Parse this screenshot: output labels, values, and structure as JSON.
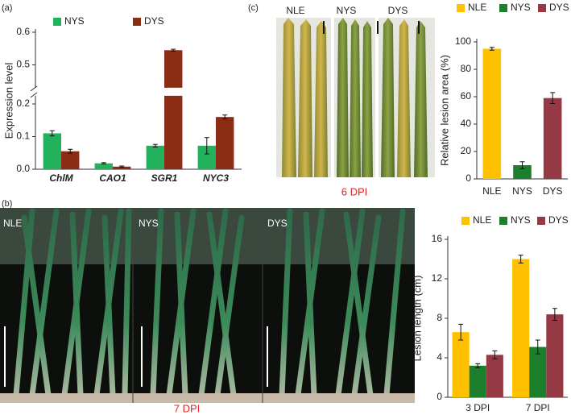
{
  "panel_labels": [
    "(a)",
    "(b)",
    "(c)"
  ],
  "photo_c": {
    "labels": [
      "NLE",
      "NYS",
      "DYS"
    ],
    "caption": "6 DPI"
  },
  "photo_b": {
    "labels": [
      "NLE",
      "NYS",
      "DYS"
    ],
    "caption": "7 DPI"
  },
  "chart_data": [
    {
      "type": "bar",
      "ylabel": "Expression level",
      "categories": [
        "ChlM",
        "CAO1",
        "SGR1",
        "NYC3"
      ],
      "series": [
        {
          "name": "NYS",
          "color": "#22b25c",
          "values": [
            0.11,
            0.018,
            0.072,
            0.072
          ],
          "errors": [
            0.008,
            0.002,
            0.004,
            0.025
          ]
        },
        {
          "name": "DYS",
          "color": "#8b2c14",
          "values": [
            0.055,
            0.008,
            0.545,
            0.16
          ],
          "errors": [
            0.006,
            0.002,
            0.003,
            0.006
          ]
        }
      ],
      "ylim": [
        0,
        0.6
      ],
      "y_break": [
        0.225,
        0.43
      ],
      "yticks": [
        {
          "value": 0,
          "label": "0.0"
        },
        0.1,
        0.2,
        0.5,
        0.6
      ]
    },
    {
      "type": "bar",
      "ylabel": "Relative lesion area (%)",
      "categories": [
        "NLE",
        "NYS",
        "DYS"
      ],
      "values": [
        95,
        10,
        59
      ],
      "errors": [
        1,
        2.5,
        4
      ],
      "colors": [
        "#ffc000",
        "#1c7f2c",
        "#953a44"
      ],
      "ylim": [
        0,
        100
      ],
      "yticks": [
        0,
        20,
        40,
        60,
        80,
        100
      ]
    },
    {
      "type": "bar",
      "ylabel": "Lesion length (cm)",
      "categories": [
        "3 DPI",
        "7 DPI"
      ],
      "series": [
        {
          "name": "NLE",
          "color": "#ffc000",
          "values": [
            6.6,
            14.0
          ],
          "errors": [
            0.8,
            0.4
          ]
        },
        {
          "name": "NYS",
          "color": "#1c7f2c",
          "values": [
            3.2,
            5.1
          ],
          "errors": [
            0.2,
            0.7
          ]
        },
        {
          "name": "DYS",
          "color": "#953a44",
          "values": [
            4.3,
            8.4
          ],
          "errors": [
            0.4,
            0.6
          ]
        }
      ],
      "ylim": [
        0,
        16
      ],
      "yticks": [
        0,
        4,
        8,
        12,
        16
      ]
    }
  ]
}
